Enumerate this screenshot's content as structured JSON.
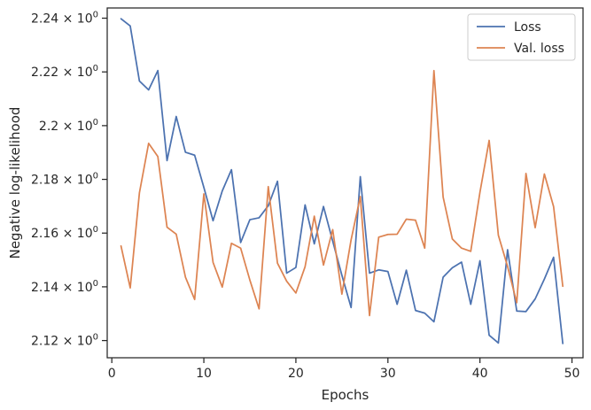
{
  "chart_data": {
    "type": "line",
    "title": "",
    "xlabel": "Epochs",
    "ylabel": "Negative log-likelihood",
    "xlim": [
      -0.5,
      51.2
    ],
    "ylim": [
      2.1136,
      2.2438
    ],
    "grid": false,
    "legend_position": "top-right",
    "x_ticks": [
      0,
      10,
      20,
      30,
      40,
      50
    ],
    "y_ticks": [
      {
        "value": 2.12,
        "mantissa": "2.12",
        "sep": "×",
        "base": "10",
        "exp": "0"
      },
      {
        "value": 2.14,
        "mantissa": "2.14",
        "sep": "×",
        "base": "10",
        "exp": "0"
      },
      {
        "value": 2.16,
        "mantissa": "2.16",
        "sep": "×",
        "base": "10",
        "exp": "0"
      },
      {
        "value": 2.18,
        "mantissa": "2.18",
        "sep": "×",
        "base": "10",
        "exp": "0"
      },
      {
        "value": 2.2,
        "mantissa": "2.2",
        "sep": "×",
        "base": "10",
        "exp": "0"
      },
      {
        "value": 2.22,
        "mantissa": "2.22",
        "sep": "×",
        "base": "10",
        "exp": "0"
      },
      {
        "value": 2.24,
        "mantissa": "2.24",
        "sep": "×",
        "base": "10",
        "exp": "0"
      }
    ],
    "x": [
      1,
      2,
      3,
      4,
      5,
      6,
      7,
      8,
      9,
      10,
      11,
      12,
      13,
      14,
      15,
      16,
      17,
      18,
      19,
      20,
      21,
      22,
      23,
      24,
      25,
      26,
      27,
      28,
      29,
      30,
      31,
      32,
      33,
      34,
      35,
      36,
      37,
      38,
      39,
      40,
      41,
      42,
      43,
      44,
      45,
      46,
      47,
      48,
      49
    ],
    "series": [
      {
        "name": "Loss",
        "color": "#4c72b0",
        "values": [
          2.2398,
          2.2371,
          2.2166,
          2.2133,
          2.2205,
          2.187,
          2.2034,
          2.1901,
          2.189,
          2.177,
          2.1646,
          2.1757,
          2.1836,
          2.1565,
          2.165,
          2.1657,
          2.1702,
          2.1793,
          2.1451,
          2.1472,
          2.1705,
          2.156,
          2.1699,
          2.157,
          2.1443,
          2.1323,
          2.181,
          2.1451,
          2.1463,
          2.1457,
          2.1335,
          2.1462,
          2.1312,
          2.1302,
          2.127,
          2.1436,
          2.1471,
          2.1492,
          2.1335,
          2.1497,
          2.122,
          2.1191,
          2.1538,
          2.131,
          2.1308,
          2.1355,
          2.1429,
          2.151,
          2.1189
        ]
      },
      {
        "name": "Val. loss",
        "color": "#dd8452",
        "values": [
          2.1552,
          2.1396,
          2.175,
          2.1934,
          2.1885,
          2.1622,
          2.1596,
          2.1436,
          2.1353,
          2.1746,
          2.1491,
          2.1399,
          2.1562,
          2.1544,
          2.1425,
          2.1318,
          2.1773,
          2.1488,
          2.1421,
          2.1377,
          2.1475,
          2.1663,
          2.1481,
          2.1613,
          2.1373,
          2.1575,
          2.1736,
          2.1293,
          2.1585,
          2.1595,
          2.1596,
          2.1652,
          2.1648,
          2.1544,
          2.2205,
          2.1734,
          2.1578,
          2.1544,
          2.1532,
          2.1752,
          2.1945,
          2.1592,
          2.1476,
          2.1341,
          2.1822,
          2.162,
          2.182,
          2.1699,
          2.1402
        ]
      }
    ]
  }
}
